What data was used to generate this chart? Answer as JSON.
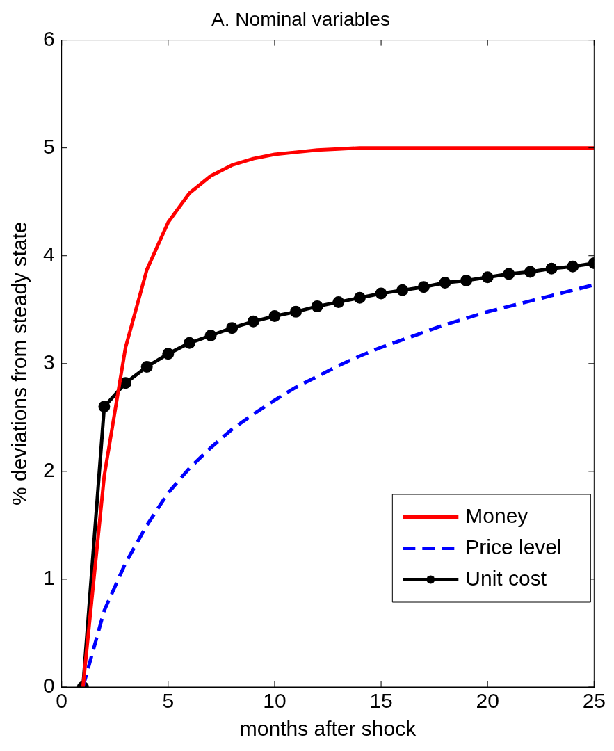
{
  "chart_data": {
    "type": "line",
    "title": "A. Nominal variables",
    "xlabel": "months after shock",
    "ylabel": "% deviations from steady state",
    "x": [
      1,
      2,
      3,
      4,
      5,
      6,
      7,
      8,
      9,
      10,
      11,
      12,
      13,
      14,
      15,
      16,
      17,
      18,
      19,
      20,
      21,
      22,
      23,
      24,
      25
    ],
    "xlim": [
      0,
      25
    ],
    "xticks": [
      0,
      5,
      10,
      15,
      20,
      25
    ],
    "ylim": [
      0,
      6
    ],
    "yticks": [
      0,
      1,
      2,
      3,
      4,
      5,
      6
    ],
    "grid": false,
    "legend": "bottom right",
    "series": [
      {
        "name": "Money",
        "color": "#ff0000",
        "line_style": "solid",
        "marker": "none",
        "values": [
          0,
          1.96,
          3.15,
          3.87,
          4.31,
          4.58,
          4.74,
          4.84,
          4.9,
          4.94,
          4.96,
          4.98,
          4.99,
          5,
          5,
          5,
          5,
          5,
          5,
          5,
          5,
          5,
          5,
          5,
          5
        ]
      },
      {
        "name": "Price level",
        "color": "#0000ff",
        "line_style": "dashed",
        "marker": "none",
        "values": [
          0,
          0.71,
          1.15,
          1.5,
          1.8,
          2.03,
          2.22,
          2.39,
          2.53,
          2.66,
          2.78,
          2.88,
          2.98,
          3.07,
          3.15,
          3.22,
          3.29,
          3.36,
          3.42,
          3.48,
          3.53,
          3.58,
          3.63,
          3.68,
          3.73
        ]
      },
      {
        "name": "Unit cost",
        "color": "#000000",
        "line_style": "solid",
        "marker": "circle",
        "values": [
          0,
          2.6,
          2.82,
          2.97,
          3.09,
          3.19,
          3.26,
          3.33,
          3.39,
          3.44,
          3.48,
          3.53,
          3.57,
          3.61,
          3.65,
          3.68,
          3.71,
          3.75,
          3.77,
          3.8,
          3.83,
          3.85,
          3.88,
          3.9,
          3.93
        ]
      }
    ]
  }
}
